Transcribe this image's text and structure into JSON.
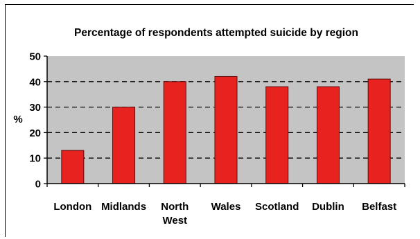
{
  "chart_data": {
    "type": "bar",
    "title": "Percentage of respondents attempted suicide by region",
    "xlabel": "",
    "ylabel": "%",
    "categories": [
      [
        "London"
      ],
      [
        "Midlands"
      ],
      [
        "North",
        "West"
      ],
      [
        "Wales"
      ],
      [
        "Scotland"
      ],
      [
        "Dublin"
      ],
      [
        "Belfast"
      ]
    ],
    "values": [
      13,
      30,
      40,
      42,
      38,
      38,
      41
    ],
    "ylim": [
      0,
      50
    ],
    "yticks": [
      "0",
      "10",
      "20",
      "30",
      "40",
      "50"
    ],
    "grid": "horizontal dashed",
    "legend": "none",
    "colors": {
      "bar": "#e8231f",
      "bar_edge": "#5a0c0c",
      "plot_bg": "#c4c4c4",
      "grid": "#000000"
    }
  }
}
